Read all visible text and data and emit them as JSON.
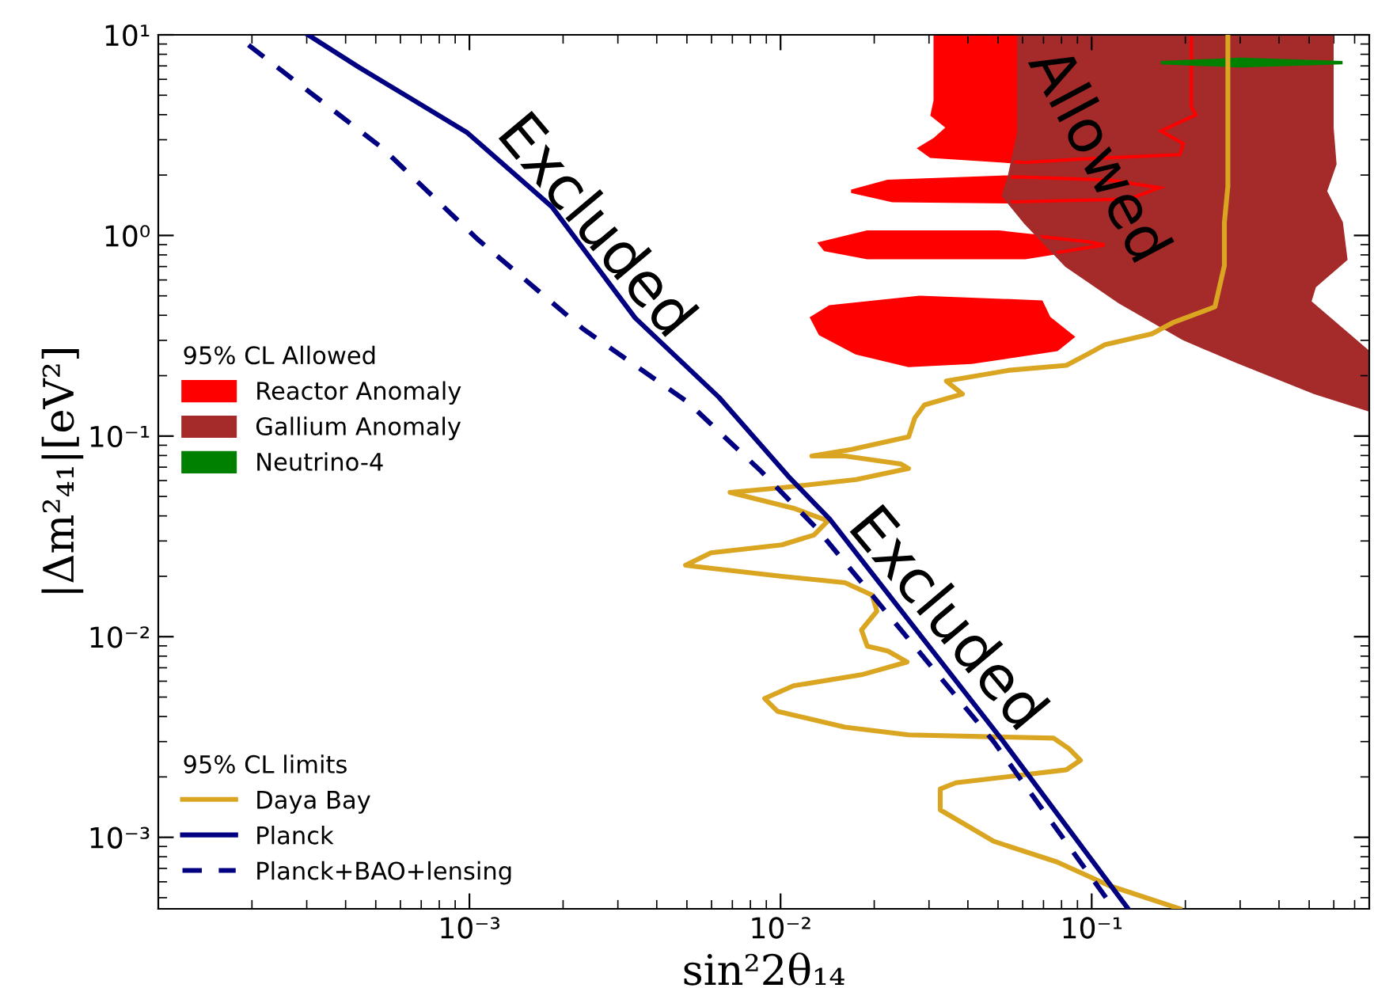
{
  "chart_data": {
    "type": "line",
    "xlabel": "sin²2θ₁₄",
    "ylabel": "|Δm²₄₁|[eV²]",
    "log": "xy",
    "xlim": [
      0.0001,
      0.78
    ],
    "ylim": [
      0.00044,
      10
    ],
    "xticks": [
      {
        "value": 0.001,
        "label": "10⁻³"
      },
      {
        "value": 0.01,
        "label": "10⁻²"
      },
      {
        "value": 0.1,
        "label": "10⁻¹"
      }
    ],
    "yticks": [
      {
        "value": 0.001,
        "label": "10⁻³"
      },
      {
        "value": 0.01,
        "label": "10⁻²"
      },
      {
        "value": 0.1,
        "label": "10⁻¹"
      },
      {
        "value": 1,
        "label": "10⁰"
      },
      {
        "value": 10,
        "label": "10¹"
      }
    ],
    "legend": "left",
    "legend_title": [
      "95% CL Allowed",
      "95% CL limits"
    ],
    "series": [
      {
        "name": "Reactor Anomaly",
        "type": "area",
        "color": "#ff0000",
        "x": [
          0.0314,
          0.209,
          0.209,
          0.216,
          0.167,
          0.197,
          0.192,
          0.0899,
          0.0612,
          0.0304,
          0.028,
          0.0314,
          0.0345,
          0.0307,
          0.0314,
          null,
          0.0169,
          0.0221,
          0.0564,
          0.114,
          0.165,
          0.132,
          0.0564,
          0.0229,
          null,
          0.0134,
          0.019,
          0.0502,
          0.0977,
          0.11,
          0.0612,
          0.019,
          0.0139,
          null,
          0.0126,
          0.0144,
          0.028,
          0.0689,
          0.0729,
          0.0869,
          0.0773,
          0.0411,
          0.0258,
          0.0175,
          0.0134
        ],
        "values": [
          10,
          10,
          4.37,
          3.99,
          3.32,
          2.87,
          2.53,
          2.4,
          2.31,
          2.48,
          2.72,
          3.03,
          3.45,
          3.99,
          4.7,
          null,
          1.66,
          1.86,
          1.96,
          1.89,
          1.73,
          1.52,
          1.47,
          1.49,
          null,
          0.913,
          1.04,
          1.04,
          0.93,
          0.897,
          0.775,
          0.775,
          0.849,
          null,
          0.388,
          0.441,
          0.492,
          0.466,
          0.388,
          0.312,
          0.27,
          0.233,
          0.225,
          0.26,
          0.323
        ]
      },
      {
        "name": "Gallium Anomaly",
        "type": "area",
        "color": "#a52a2a",
        "x": [
          0.0583,
          0.0583,
          0.0545,
          0.052,
          0.0612,
          0.0829,
          0.123,
          0.197,
          0.29,
          0.52,
          0.78,
          0.78,
          0.502,
          0.52,
          0.656,
          0.634,
          0.564,
          0.605,
          0.592,
          0.592
        ],
        "values": [
          10,
          3.27,
          2.0,
          1.58,
          1.16,
          0.708,
          0.466,
          0.306,
          0.237,
          0.165,
          0.135,
          0.26,
          0.466,
          0.558,
          0.761,
          1.16,
          1.66,
          2.27,
          3.45,
          10
        ]
      },
      {
        "name": "Neutrino-4",
        "type": "area",
        "color": "#008000",
        "x": [
          0.167,
          0.3,
          0.64,
          0.3
        ],
        "values": [
          7.27,
          7.55,
          7.27,
          7.0
        ]
      },
      {
        "name": "Daya Bay",
        "color": "#daa520",
        "line_style": "solid",
        "x": [
          0.274,
          0.274,
          0.267,
          0.267,
          0.249,
          0.182,
          0.156,
          0.11,
          0.0989,
          0.0829,
          0.0545,
          0.0341,
          0.0384,
          0.029,
          0.027,
          0.0258,
          0.0169,
          0.0126,
          0.0161,
          0.0243,
          0.0258,
          0.0175,
          0.0101,
          0.00688,
          0.011,
          0.0142,
          0.0128,
          0.0101,
          0.00598,
          0.00495,
          0.00545,
          0.0101,
          0.0161,
          0.0197,
          0.0204,
          0.0182,
          0.019,
          0.0221,
          0.0255,
          0.0182,
          0.011,
          0.00889,
          0.00977,
          0.0161,
          0.0258,
          0.0755,
          0.0849,
          0.092,
          0.0829,
          0.0366,
          0.0326,
          0.0326,
          0.0484,
          0.0773,
          0.114,
          0.192
        ],
        "values": [
          10,
          1.76,
          1.16,
          0.708,
          0.441,
          0.367,
          0.323,
          0.285,
          0.26,
          0.225,
          0.213,
          0.188,
          0.162,
          0.143,
          0.123,
          0.0991,
          0.0857,
          0.0796,
          0.0796,
          0.0727,
          0.0689,
          0.0607,
          0.0553,
          0.0524,
          0.0437,
          0.0378,
          0.0321,
          0.0287,
          0.0262,
          0.0227,
          0.0223,
          0.02,
          0.0186,
          0.0161,
          0.0134,
          0.0108,
          0.00897,
          0.00849,
          0.00748,
          0.00646,
          0.00569,
          0.00492,
          0.00425,
          0.00354,
          0.00324,
          0.00312,
          0.00275,
          0.00242,
          0.00217,
          0.00187,
          0.00174,
          0.00137,
          0.000955,
          0.000754,
          0.000574,
          0.00044
        ]
      },
      {
        "name": "Planck",
        "color": "#000080",
        "line_style": "solid",
        "x": [
          0.000303,
          0.000441,
          0.00098,
          0.00184,
          0.00341,
          0.00634,
          0.0106,
          0.0144,
          0.052,
          0.131
        ],
        "values": [
          10,
          6.9,
          3.27,
          1.39,
          0.388,
          0.156,
          0.0629,
          0.0385,
          0.003,
          0.00044
        ]
      },
      {
        "name": "Planck+BAO+lensing",
        "color": "#000080",
        "line_style": "dashed",
        "x": [
          0.000195,
          0.000526,
          0.00106,
          0.00232,
          0.00502,
          0.00869,
          0.0131,
          0.0484,
          0.118
        ],
        "values": [
          8.89,
          2.72,
          0.96,
          0.342,
          0.148,
          0.0664,
          0.0345,
          0.003,
          0.00044
        ]
      }
    ],
    "annotations": [
      "Excluded",
      "Excluded",
      "Allowed"
    ]
  }
}
